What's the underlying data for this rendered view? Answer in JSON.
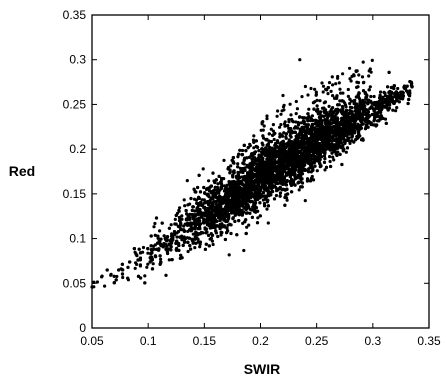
{
  "chart_data": {
    "type": "scatter",
    "title": "",
    "xlabel": "SWIR",
    "ylabel": "Red",
    "xlim": [
      0.05,
      0.35
    ],
    "ylim": [
      0,
      0.35
    ],
    "xticks": [
      "0.05",
      "0.1",
      "0.15",
      "0.2",
      "0.25",
      "0.3",
      "0.35"
    ],
    "yticks": [
      "0",
      "0.05",
      "0.1",
      "0.15",
      "0.2",
      "0.25",
      "0.3",
      "0.35"
    ],
    "grid": false,
    "legend": "none",
    "marker_color": "#000000",
    "point_count": 6000,
    "trend": {
      "x": [
        0.05,
        0.08,
        0.12,
        0.16,
        0.2,
        0.24,
        0.28,
        0.33
      ],
      "y_center": [
        0.047,
        0.065,
        0.1,
        0.135,
        0.168,
        0.2,
        0.228,
        0.265
      ],
      "y_spread": [
        0.004,
        0.015,
        0.025,
        0.03,
        0.032,
        0.03,
        0.022,
        0.01
      ]
    },
    "notable_points": [
      {
        "x": 0.235,
        "y": 0.3
      },
      {
        "x": 0.24,
        "y": 0.27
      },
      {
        "x": 0.22,
        "y": 0.26
      },
      {
        "x": 0.335,
        "y": 0.27
      }
    ]
  }
}
